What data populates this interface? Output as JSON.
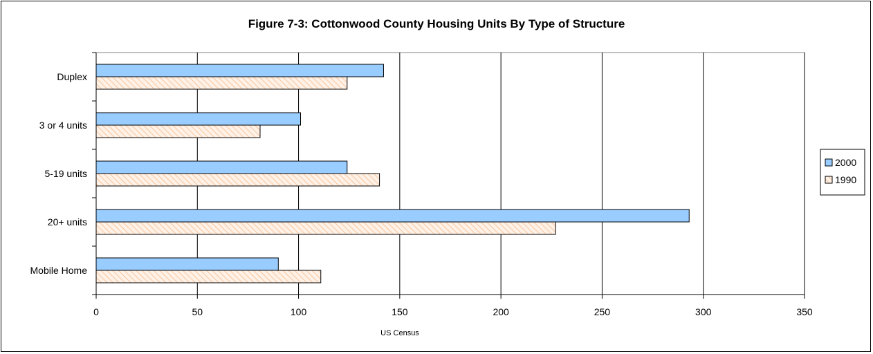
{
  "chart_data": {
    "type": "bar",
    "orientation": "horizontal",
    "title": "Figure 7-3:  Cottonwood County Housing Units By Type of Structure",
    "xlabel": "US Census",
    "ylabel": "",
    "xlim": [
      0,
      350
    ],
    "xticks": [
      0,
      50,
      100,
      150,
      200,
      250,
      300,
      350
    ],
    "xtick_labels": [
      "0",
      "50",
      "100",
      "150",
      "200",
      "250",
      "300",
      "350"
    ],
    "categories": [
      "Duplex",
      "3 or 4 units",
      "5-19 units",
      "20+ units",
      "Mobile Home"
    ],
    "series": [
      {
        "name": "2000",
        "values": [
          142,
          101,
          124,
          293,
          90
        ],
        "color": "#99ccff",
        "pattern": "solid"
      },
      {
        "name": "1990",
        "values": [
          124,
          81,
          140,
          227,
          111
        ],
        "color": "#ffe9d9",
        "pattern": "diagonal-hatch",
        "hatch_color": "#f5c6a0"
      }
    ],
    "grid": "vertical major gridlines",
    "legend": "right"
  }
}
